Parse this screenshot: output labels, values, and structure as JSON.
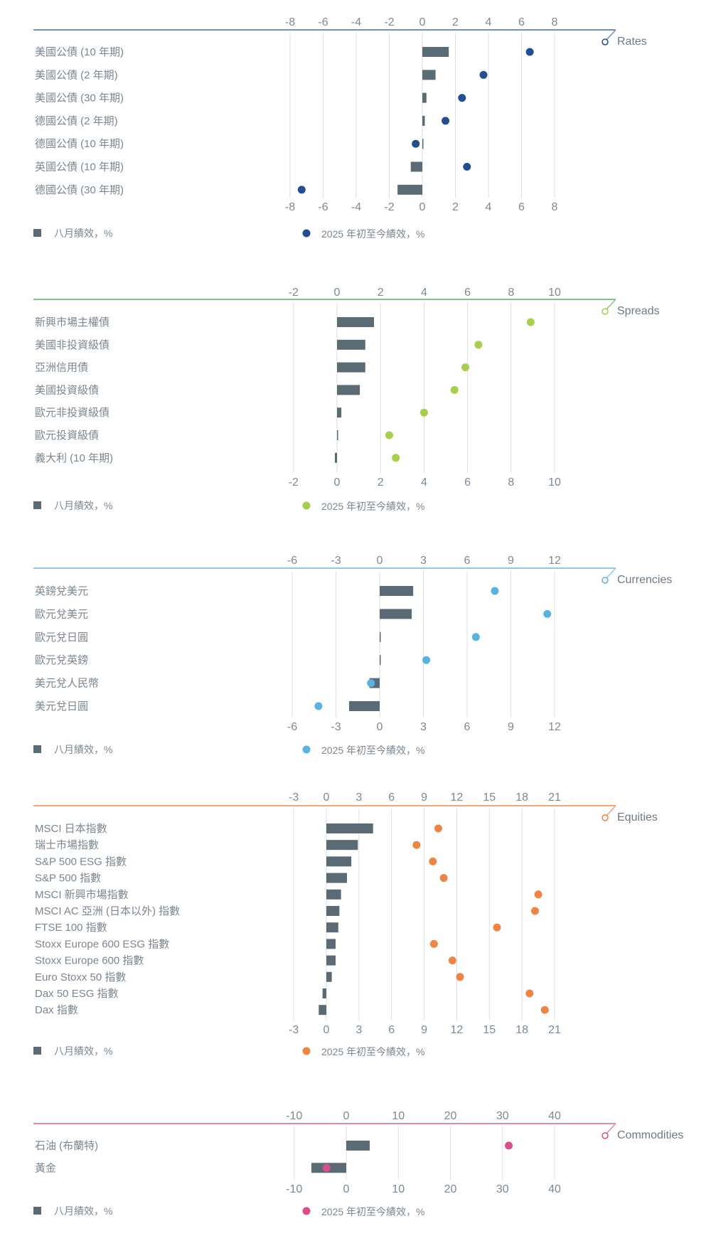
{
  "legend": {
    "bar_label": "八月績效，%",
    "dot_label": "2025 年初至今績效，%"
  },
  "colors": {
    "bar": "#5b6b76",
    "grid": "#dcdfe2"
  },
  "chart_data": [
    {
      "type": "bar+dot",
      "title": "Rates",
      "accent": "#234e91",
      "line": "#6f8fbf",
      "xlim": [
        -8,
        8
      ],
      "ticks": [
        -8,
        -6,
        -4,
        -2,
        0,
        2,
        4,
        6,
        8
      ],
      "categories": [
        "美國公債 (10 年期)",
        "美國公債 (2 年期)",
        "美國公債 (30 年期)",
        "德國公債 (2 年期)",
        "德國公債 (10 年期)",
        "英國公債 (10 年期)",
        "德國公債 (30 年期)"
      ],
      "series": [
        {
          "name": "八月績效，%",
          "kind": "bar",
          "values": [
            1.6,
            0.8,
            0.25,
            0.15,
            0.05,
            -0.7,
            -1.5
          ]
        },
        {
          "name": "2025 年初至今績效，%",
          "kind": "dot",
          "values": [
            6.5,
            3.7,
            2.4,
            1.4,
            -0.4,
            2.7,
            -7.3
          ]
        }
      ]
    },
    {
      "type": "bar+dot",
      "title": "Spreads",
      "accent": "#a5cf4c",
      "line": "#7fc68c",
      "xlim": [
        -2,
        10
      ],
      "ticks": [
        -2,
        0,
        2,
        4,
        6,
        8,
        10
      ],
      "categories": [
        "新興市場主權債",
        "美國非投資級債",
        "亞洲信用債",
        "美國投資級債",
        "歐元非投資級債",
        "歐元投資級債",
        "義大利 (10 年期)"
      ],
      "series": [
        {
          "name": "八月績效，%",
          "kind": "bar",
          "values": [
            1.7,
            1.3,
            1.3,
            1.05,
            0.2,
            0.05,
            -0.1
          ]
        },
        {
          "name": "2025 年初至今績效，%",
          "kind": "dot",
          "values": [
            8.9,
            6.5,
            5.9,
            5.4,
            4.0,
            2.4,
            2.7
          ]
        }
      ]
    },
    {
      "type": "bar+dot",
      "title": "Currencies",
      "accent": "#58b3e1",
      "line": "#8ccbe8",
      "xlim": [
        -6,
        12
      ],
      "ticks": [
        -6,
        -3,
        0,
        3,
        6,
        9,
        12
      ],
      "categories": [
        "英鎊兌美元",
        "歐元兌美元",
        "歐元兌日圓",
        "歐元兌英鎊",
        "美元兌人民幣",
        "美元兌日圓"
      ],
      "series": [
        {
          "name": "八月績效，%",
          "kind": "bar",
          "values": [
            2.3,
            2.2,
            0.05,
            0.0,
            -0.7,
            -2.1
          ]
        },
        {
          "name": "2025 年初至今績效，%",
          "kind": "dot",
          "values": [
            7.9,
            11.5,
            6.6,
            3.2,
            -0.6,
            -4.2
          ]
        }
      ]
    },
    {
      "type": "bar+dot",
      "title": "Equities",
      "accent": "#ee8544",
      "line": "#f1a578",
      "xlim": [
        -3,
        21
      ],
      "ticks": [
        -3,
        0,
        3,
        6,
        9,
        12,
        15,
        18,
        21
      ],
      "categories": [
        "MSCI 日本指數",
        "瑞士市場指數",
        "S&P 500 ESG 指數",
        "S&P 500 指數",
        "MSCI 新興市場指數",
        "MSCI AC 亞洲 (日本以外) 指數",
        "FTSE 100 指數",
        "Stoxx Europe 600 ESG 指數",
        "Stoxx Europe 600 指數",
        "Euro Stoxx 50 指數",
        "Dax 50 ESG 指數",
        "Dax 指數"
      ],
      "series": [
        {
          "name": "八月績效，%",
          "kind": "bar",
          "values": [
            4.3,
            2.9,
            2.3,
            1.9,
            1.35,
            1.2,
            1.1,
            0.85,
            0.85,
            0.5,
            -0.35,
            -0.7
          ]
        },
        {
          "name": "2025 年初至今績效，%",
          "kind": "dot",
          "values": [
            10.3,
            8.3,
            9.8,
            10.8,
            19.5,
            19.2,
            15.7,
            9.9,
            11.6,
            12.3,
            18.7,
            20.1
          ]
        }
      ]
    },
    {
      "type": "bar+dot",
      "title": "Commodities",
      "accent": "#d94f8b",
      "line": "#e389ac",
      "xlim": [
        -10,
        40
      ],
      "ticks": [
        -10,
        0,
        10,
        20,
        30,
        40
      ],
      "categories": [
        "石油 (布蘭特)",
        "黃金"
      ],
      "series": [
        {
          "name": "八月績效，%",
          "kind": "bar",
          "values": [
            4.5,
            -6.7
          ]
        },
        {
          "name": "2025 年初至今績效，%",
          "kind": "dot",
          "values": [
            31.2,
            -3.8
          ]
        }
      ]
    }
  ]
}
